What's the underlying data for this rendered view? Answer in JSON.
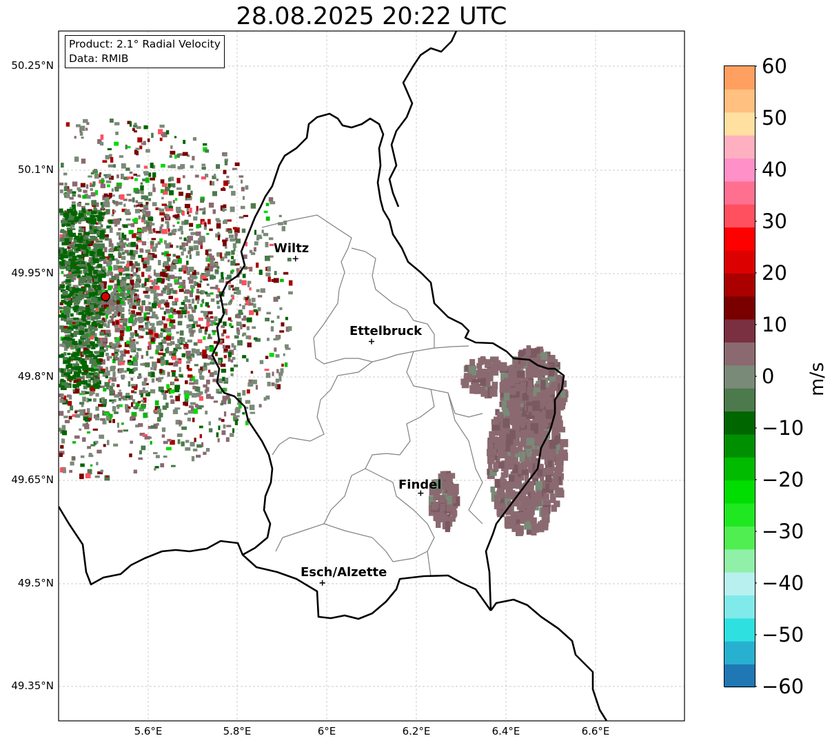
{
  "title": "28.08.2025 20:22 UTC",
  "info_box": {
    "product_line": "Product: 2.1° Radial Velocity",
    "data_line": "Data: RMIB"
  },
  "axes": {
    "y_ticks": [
      "50.25°N",
      "50.1°N",
      "49.95°N",
      "49.8°N",
      "49.65°N",
      "49.5°N",
      "49.35°N"
    ],
    "x_ticks": [
      "5.6°E",
      "5.8°E",
      "6°E",
      "6.2°E",
      "6.4°E",
      "6.6°E"
    ],
    "lon_range": [
      5.4,
      6.8
    ],
    "lat_range": [
      49.3,
      50.3
    ]
  },
  "cities": [
    {
      "name": "Wiltz",
      "lon": 5.93,
      "lat": 49.97
    },
    {
      "name": "Ettelbruck",
      "lon": 6.1,
      "lat": 49.85
    },
    {
      "name": "Findel",
      "lon": 6.21,
      "lat": 49.63
    },
    {
      "name": "Esch/Alzette",
      "lon": 5.99,
      "lat": 49.5
    }
  ],
  "radar_site": {
    "lon": 5.505,
    "lat": 49.915,
    "color": "#dd0000"
  },
  "colorbar": {
    "unit": "m/s",
    "min": -60,
    "max": 60,
    "tick_labels": [
      "60",
      "50",
      "40",
      "30",
      "20",
      "10",
      "0",
      "−10",
      "−20",
      "−30",
      "−40",
      "−50",
      "−60"
    ],
    "colors": [
      "#1f77b4",
      "#28b0d0",
      "#2ee0e0",
      "#80eaea",
      "#b8f0f0",
      "#90f0a8",
      "#50ee50",
      "#20e820",
      "#00dd00",
      "#00bb00",
      "#008f00",
      "#006600",
      "#4c7a4c",
      "#7a8a78",
      "#8a6a70",
      "#7a3040",
      "#7a0000",
      "#aa0000",
      "#dd0000",
      "#ff0000",
      "#ff5060",
      "#ff7090",
      "#ff90c8",
      "#ffb0c0",
      "#ffe0a0",
      "#ffc080",
      "#ffa060"
    ]
  }
}
